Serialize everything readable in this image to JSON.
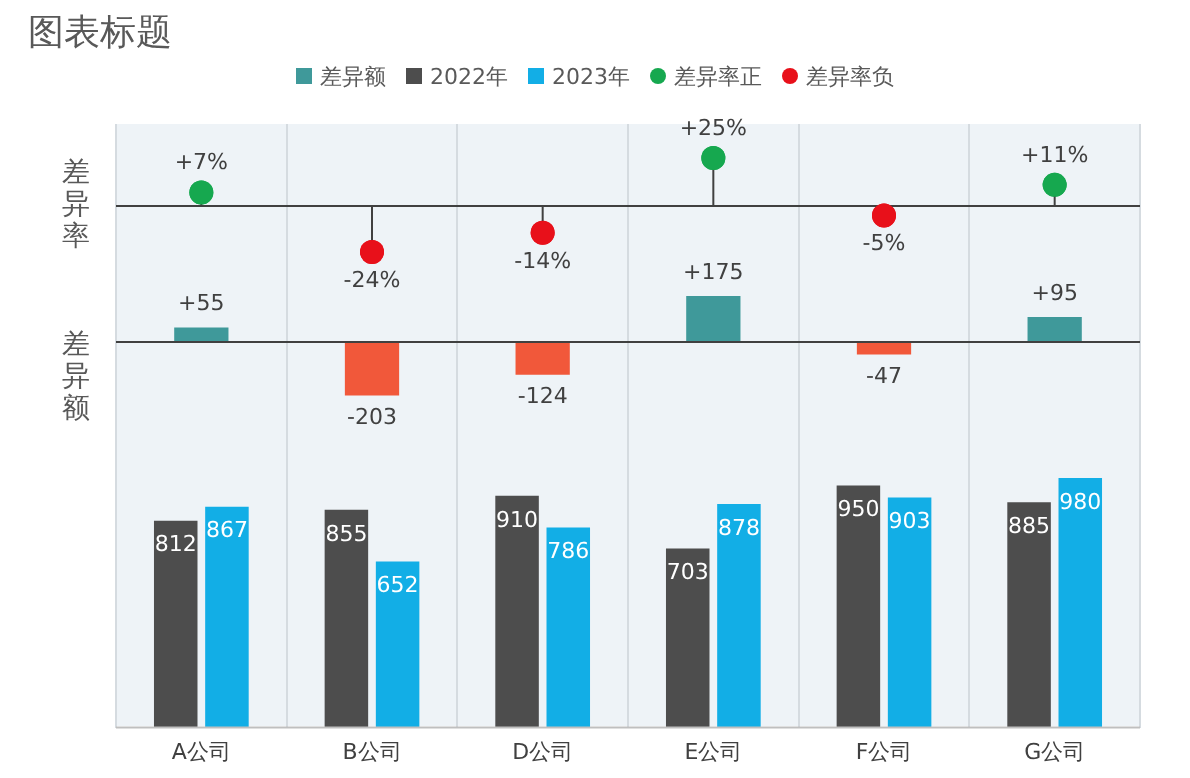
{
  "chart_data": [
    {
      "type": "lollipop",
      "title": "图表标题",
      "ylabel": "差异率",
      "categories": [
        "A公司",
        "B公司",
        "D公司",
        "E公司",
        "F公司",
        "G公司"
      ],
      "series": [
        {
          "name": "差异率正",
          "color": "#16a84f",
          "values": [
            7,
            null,
            null,
            25,
            null,
            11
          ],
          "value_labels": [
            "+7%",
            null,
            null,
            "+25%",
            null,
            "+11%"
          ]
        },
        {
          "name": "差异率负",
          "color": "#e8101a",
          "values": [
            null,
            -24,
            -14,
            null,
            -5,
            null
          ],
          "value_labels": [
            null,
            "-24%",
            "-14%",
            null,
            "-5%",
            null
          ]
        }
      ],
      "marker": "circle",
      "grid": "x",
      "legend": "top",
      "tick_labels": false
    },
    {
      "type": "bar",
      "ylabel": "差异额",
      "categories": [
        "A公司",
        "B公司",
        "D公司",
        "E公司",
        "F公司",
        "G公司"
      ],
      "series": [
        {
          "name": "差异额",
          "color": "#3f999a",
          "colors": [
            "#3f999a",
            "#f1583a",
            "#f1583a",
            "#3f999a",
            "#f1583a",
            "#3f999a"
          ],
          "values": [
            55,
            -203,
            -124,
            175,
            -47,
            95
          ],
          "value_labels": [
            "+55",
            "-203",
            "-124",
            "+175",
            "-47",
            "+95"
          ]
        }
      ],
      "grid": "x",
      "legend": "top",
      "tick_labels": false
    },
    {
      "type": "bar",
      "categories": [
        "A公司",
        "B公司",
        "D公司",
        "E公司",
        "F公司",
        "G公司"
      ],
      "series": [
        {
          "name": "2022年",
          "color": "#4d4d4d",
          "values": [
            812,
            855,
            910,
            703,
            950,
            885
          ]
        },
        {
          "name": "2023年",
          "color": "#12aee6",
          "values": [
            867,
            652,
            786,
            878,
            903,
            980
          ]
        }
      ],
      "data_labels": true,
      "grid": "x",
      "legend": "top",
      "tick_labels": "x"
    }
  ]
}
